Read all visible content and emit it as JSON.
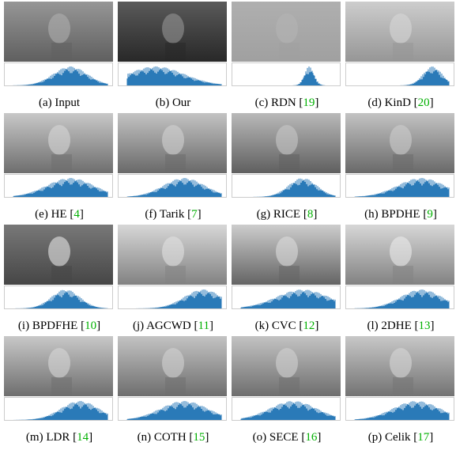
{
  "panels": [
    {
      "caption": "(a) Input"
    },
    {
      "caption": "(b) Our"
    },
    {
      "caption": "(c) RDN [",
      "ref": "19",
      "close": "]"
    },
    {
      "caption": "(d) KinD [",
      "ref": "20",
      "close": "]"
    },
    {
      "caption": "(e) HE [",
      "ref": "4",
      "close": "]"
    },
    {
      "caption": "(f) Tarik [",
      "ref": "7",
      "close": "]"
    },
    {
      "caption": "(g) RICE [",
      "ref": "8",
      "close": "]"
    },
    {
      "caption": "(h) BPDHE [",
      "ref": "9",
      "close": "]"
    },
    {
      "caption": "(i) BPDFHE [",
      "ref": "10",
      "close": "]"
    },
    {
      "caption": "(j) AGCWD [",
      "ref": "11",
      "close": "]"
    },
    {
      "caption": "(k) CVC [",
      "ref": "12",
      "close": "]"
    },
    {
      "caption": "(l) 2DHE [",
      "ref": "13",
      "close": "]"
    },
    {
      "caption": "(m) LDR [",
      "ref": "14",
      "close": "]"
    },
    {
      "caption": "(n) COTH [",
      "ref": "15",
      "close": "]"
    },
    {
      "caption": "(o) SECE [",
      "ref": "16",
      "close": "]"
    },
    {
      "caption": "(p) Celik [",
      "ref": "17",
      "close": "]"
    }
  ]
}
